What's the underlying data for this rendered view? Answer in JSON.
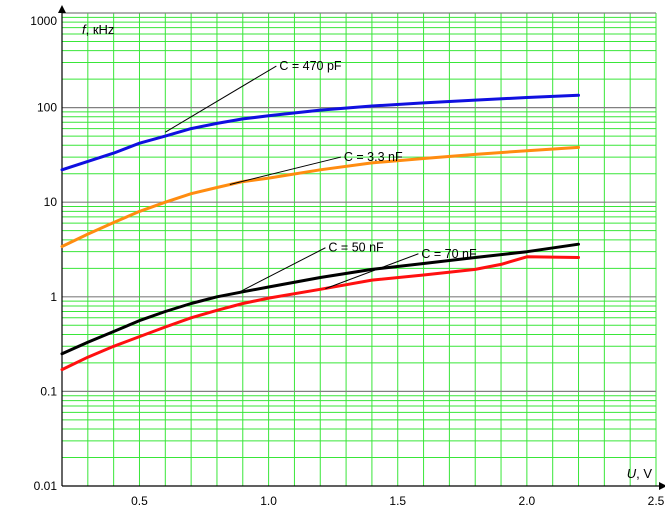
{
  "chart_data": {
    "type": "line",
    "title": "",
    "xlabel": {
      "symbol": "U",
      "unit": ", V"
    },
    "ylabel": {
      "symbol": "f",
      "unit": ", кHz"
    },
    "xlim": [
      0.2,
      2.5
    ],
    "ylim": [
      0.01,
      1000
    ],
    "yscale": "log",
    "x_ticks": [
      0.5,
      1.0,
      1.5,
      2.0,
      2.5
    ],
    "x_tick_labels": [
      "0.5",
      "1.0",
      "1.5",
      "2.0",
      "2.5"
    ],
    "y_ticks": [
      0.01,
      0.1,
      1,
      10,
      100,
      1000
    ],
    "y_tick_labels": [
      "0.01",
      "0.1",
      "1",
      "10",
      "100",
      "1000"
    ],
    "grid": true,
    "colors": {
      "grid_minor": "#39e639",
      "grid_major": "#808080",
      "background": "#ffffff"
    },
    "series": [
      {
        "name": "C = 470 pF",
        "color": "#1010e0",
        "x": [
          0.2,
          0.3,
          0.4,
          0.5,
          0.6,
          0.7,
          0.8,
          0.9,
          1.0,
          1.2,
          1.4,
          1.6,
          1.8,
          2.0,
          2.2
        ],
        "y": [
          22,
          27,
          33,
          42,
          50,
          60,
          68,
          76,
          82,
          94,
          104,
          112,
          120,
          128,
          135
        ]
      },
      {
        "name": "C = 3.3 nF",
        "color": "#ff8c10",
        "x": [
          0.2,
          0.3,
          0.4,
          0.5,
          0.6,
          0.7,
          0.8,
          0.9,
          1.0,
          1.2,
          1.4,
          1.6,
          1.8,
          2.0,
          2.2
        ],
        "y": [
          3.4,
          4.6,
          6.1,
          8.0,
          10.0,
          12.3,
          14.3,
          16.5,
          18.0,
          22,
          26,
          29,
          32,
          35,
          38
        ]
      },
      {
        "name": "C = 50 nF",
        "color": "#000000",
        "x": [
          0.2,
          0.3,
          0.4,
          0.5,
          0.6,
          0.7,
          0.8,
          0.9,
          1.0,
          1.2,
          1.4,
          1.6,
          1.8,
          2.0,
          2.2
        ],
        "y": [
          0.25,
          0.33,
          0.43,
          0.56,
          0.7,
          0.85,
          1.0,
          1.13,
          1.27,
          1.6,
          1.95,
          2.25,
          2.6,
          3.0,
          3.6
        ]
      },
      {
        "name": "C = 70 nF",
        "color": "#ff1010",
        "x": [
          0.2,
          0.3,
          0.4,
          0.5,
          0.6,
          0.7,
          0.8,
          0.9,
          1.0,
          1.2,
          1.4,
          1.6,
          1.8,
          1.9,
          2.0,
          2.2
        ],
        "y": [
          0.17,
          0.23,
          0.3,
          0.38,
          0.48,
          0.6,
          0.72,
          0.85,
          0.97,
          1.2,
          1.5,
          1.7,
          1.95,
          2.2,
          2.65,
          2.6
        ]
      }
    ],
    "annotations": [
      {
        "series": 0,
        "text": "C = 470 pF",
        "anchor": [
          0.6,
          55
        ],
        "label_at": [
          1.03,
          275
        ]
      },
      {
        "series": 1,
        "text": "C = 3.3 nF",
        "anchor": [
          0.85,
          15.4
        ],
        "label_at": [
          1.28,
          30
        ]
      },
      {
        "series": 2,
        "text": "C = 50 nF",
        "anchor": [
          0.88,
          1.1
        ],
        "label_at": [
          1.22,
          3.3
        ]
      },
      {
        "series": 3,
        "text": "C = 70 nF",
        "anchor": [
          1.22,
          1.22
        ],
        "label_at": [
          1.58,
          2.85
        ]
      }
    ]
  }
}
